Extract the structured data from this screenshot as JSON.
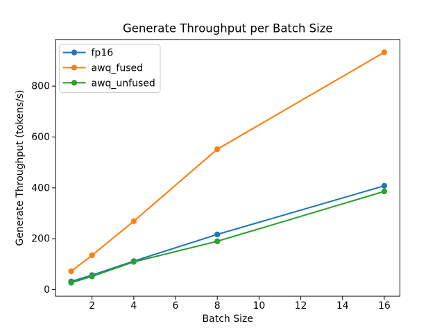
{
  "chart_data": {
    "type": "line",
    "title": "Generate Throughput per Batch Size",
    "xlabel": "Batch Size",
    "ylabel": "Generate Throughput (tokens/s)",
    "x": [
      1,
      2,
      4,
      8,
      16
    ],
    "series": [
      {
        "name": "fp16",
        "color": "#1f77b4",
        "values": [
          32,
          57,
          112,
          217,
          408
        ]
      },
      {
        "name": "awq_fused",
        "color": "#ff7f0e",
        "values": [
          72,
          135,
          269,
          552,
          933
        ]
      },
      {
        "name": "awq_unfused",
        "color": "#2ca02c",
        "values": [
          27,
          52,
          109,
          190,
          386
        ]
      }
    ],
    "xticks": [
      2,
      4,
      6,
      8,
      10,
      12,
      14,
      16
    ],
    "yticks": [
      0,
      200,
      400,
      600,
      800
    ],
    "xlim": [
      0.25,
      16.75
    ],
    "ylim": [
      -26,
      983
    ],
    "grid": false,
    "marker": "o",
    "legend": {
      "position": "upper left",
      "entries": [
        "fp16",
        "awq_fused",
        "awq_unfused"
      ]
    },
    "background": "#ffffff",
    "axis_color": "#000000",
    "legend_border_color": "#cccccc"
  }
}
